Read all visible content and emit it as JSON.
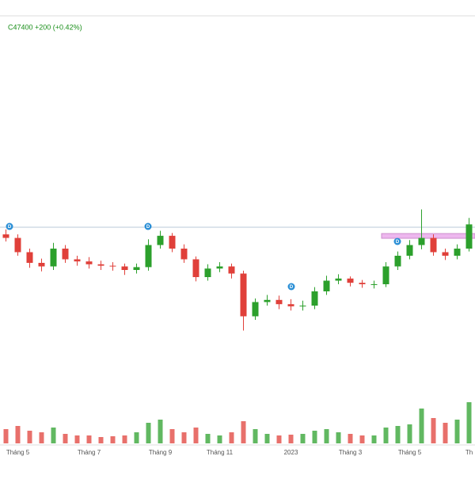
{
  "chart_data": {
    "type": "candlestick",
    "header": "C47400 +200 (+0.42%)",
    "categories": [
      null,
      "Tháng 5",
      null,
      null,
      null,
      null,
      null,
      "Tháng 7",
      null,
      null,
      null,
      null,
      null,
      "Tháng 9",
      null,
      null,
      null,
      null,
      "Tháng 11",
      null,
      null,
      null,
      null,
      null,
      "2023",
      null,
      null,
      null,
      null,
      "Tháng 3",
      null,
      null,
      null,
      null,
      "Tháng 5",
      null,
      null,
      null,
      null,
      "Th"
    ],
    "open": [
      46000,
      45500,
      43500,
      42000,
      41500,
      44000,
      42500,
      42200,
      41800,
      41600,
      41500,
      41000,
      41400,
      44500,
      45800,
      44000,
      42500,
      40000,
      41200,
      41500,
      40500,
      34500,
      36500,
      36800,
      36200,
      35900,
      36000,
      38000,
      39500,
      39800,
      39200,
      39000,
      39000,
      41500,
      43000,
      44500,
      45500,
      43500,
      43000,
      44000
    ],
    "high": [
      46700,
      46000,
      44000,
      42600,
      44800,
      44500,
      43000,
      42800,
      42300,
      42100,
      41900,
      41900,
      45300,
      46500,
      46200,
      44600,
      42900,
      41800,
      42100,
      41900,
      40900,
      37000,
      37500,
      37400,
      36900,
      36700,
      38600,
      40200,
      40400,
      40100,
      39600,
      39500,
      42100,
      43600,
      45200,
      49500,
      46000,
      44000,
      44600,
      48300
    ],
    "low": [
      45000,
      43000,
      41300,
      40800,
      41000,
      42000,
      41600,
      41200,
      41000,
      40900,
      40300,
      40500,
      40900,
      44000,
      43500,
      42000,
      39400,
      39500,
      40700,
      39800,
      32500,
      34000,
      36000,
      35500,
      35300,
      35300,
      35500,
      37500,
      39000,
      38700,
      38500,
      38400,
      38600,
      41000,
      42500,
      43900,
      43000,
      42400,
      42500,
      43600
    ],
    "close": [
      45500,
      43500,
      42000,
      41500,
      44000,
      42500,
      42200,
      41800,
      41600,
      41500,
      41000,
      41400,
      44500,
      45800,
      44000,
      42500,
      40000,
      41200,
      41500,
      40500,
      34500,
      36500,
      36800,
      36200,
      35900,
      36000,
      38000,
      39500,
      39800,
      39200,
      39000,
      39000,
      41500,
      43000,
      44500,
      45500,
      43500,
      43000,
      44000,
      47400
    ],
    "volume": [
      900000,
      1100000,
      800000,
      700000,
      1000000,
      600000,
      500000,
      500000,
      400000,
      450000,
      500000,
      700000,
      1300000,
      1500000,
      900000,
      700000,
      1000000,
      600000,
      500000,
      700000,
      1400000,
      900000,
      600000,
      500000,
      550000,
      600000,
      800000,
      900000,
      700000,
      600000,
      500000,
      500000,
      1000000,
      1100000,
      1200000,
      2200000,
      1600000,
      1300000,
      1500000,
      2600000
    ],
    "ylim": [
      30000,
      50000
    ],
    "volume_ylim": [
      0,
      3000000
    ],
    "resistance": 47000,
    "event_label": "D",
    "up_color": "#2ca02c",
    "down_color": "#e0403a"
  }
}
